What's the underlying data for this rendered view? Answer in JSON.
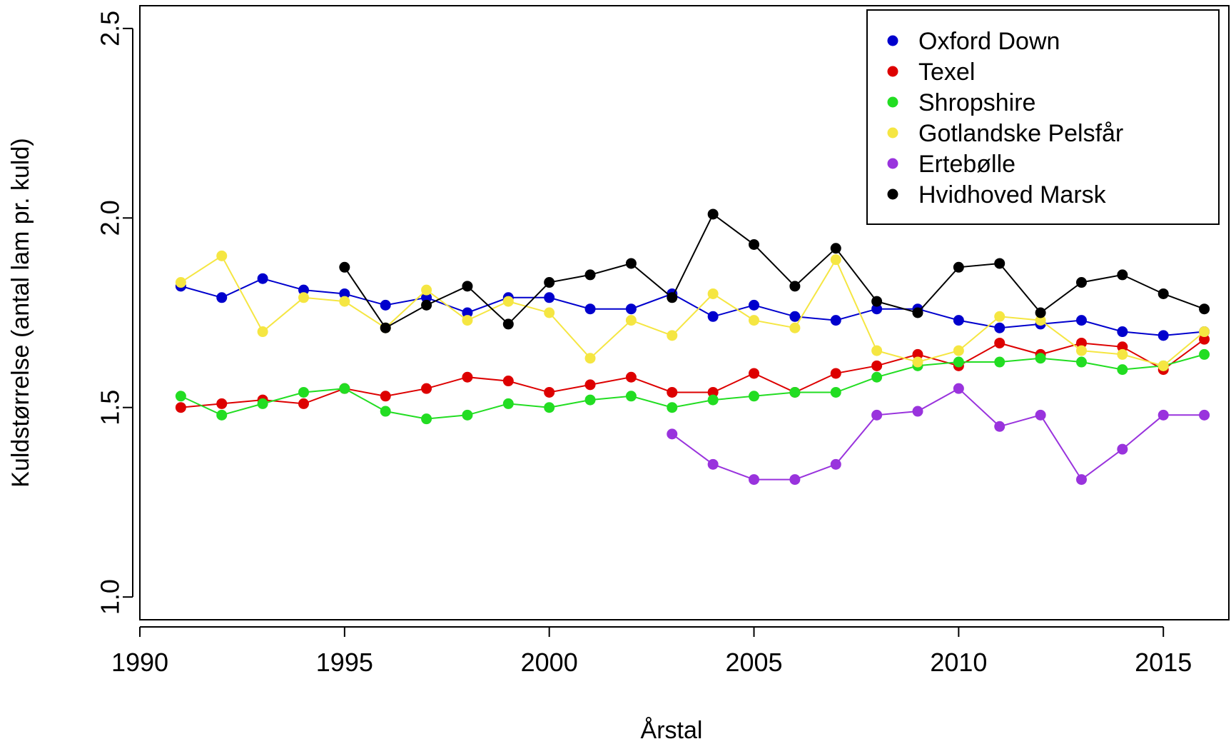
{
  "chart_data": {
    "type": "line",
    "title": "",
    "xlabel": "Årstal",
    "ylabel": "Kuldstørrelse (antal lam pr. kuld)",
    "xlim": [
      1990,
      2016.6
    ],
    "ylim": [
      0.94,
      2.56
    ],
    "xticks": [
      1990,
      1995,
      2000,
      2005,
      2010,
      2015
    ],
    "yticks": [
      1.0,
      1.5,
      2.0,
      2.5
    ],
    "xtick_labels": [
      "1990",
      "1995",
      "2000",
      "2005",
      "2010",
      "2015"
    ],
    "ytick_labels": [
      "1.0",
      "1.5",
      "2.0",
      "2.5"
    ],
    "grid": false,
    "legend_position": "top-right",
    "series": [
      {
        "name": "Oxford Down",
        "color": "#0000cd",
        "x": [
          1991,
          1992,
          1993,
          1994,
          1995,
          1996,
          1997,
          1998,
          1999,
          2000,
          2001,
          2002,
          2003,
          2004,
          2005,
          2006,
          2007,
          2008,
          2009,
          2010,
          2011,
          2012,
          2013,
          2014,
          2015,
          2016
        ],
        "y": [
          1.82,
          1.79,
          1.84,
          1.81,
          1.8,
          1.77,
          1.79,
          1.75,
          1.79,
          1.79,
          1.76,
          1.76,
          1.8,
          1.74,
          1.77,
          1.74,
          1.73,
          1.76,
          1.76,
          1.73,
          1.71,
          1.72,
          1.73,
          1.7,
          1.69,
          1.7
        ]
      },
      {
        "name": "Texel",
        "color": "#dd0000",
        "x": [
          1991,
          1992,
          1993,
          1994,
          1995,
          1996,
          1997,
          1998,
          1999,
          2000,
          2001,
          2002,
          2003,
          2004,
          2005,
          2006,
          2007,
          2008,
          2009,
          2010,
          2011,
          2012,
          2013,
          2014,
          2015,
          2016
        ],
        "y": [
          1.5,
          1.51,
          1.52,
          1.51,
          1.55,
          1.53,
          1.55,
          1.58,
          1.57,
          1.54,
          1.56,
          1.58,
          1.54,
          1.54,
          1.59,
          1.54,
          1.59,
          1.61,
          1.64,
          1.61,
          1.67,
          1.64,
          1.67,
          1.66,
          1.6,
          1.68
        ]
      },
      {
        "name": "Shropshire",
        "color": "#22dd22",
        "x": [
          1991,
          1992,
          1993,
          1994,
          1995,
          1996,
          1997,
          1998,
          1999,
          2000,
          2001,
          2002,
          2003,
          2004,
          2005,
          2006,
          2007,
          2008,
          2009,
          2010,
          2011,
          2012,
          2013,
          2014,
          2015,
          2016
        ],
        "y": [
          1.53,
          1.48,
          1.51,
          1.54,
          1.55,
          1.49,
          1.47,
          1.48,
          1.51,
          1.5,
          1.52,
          1.53,
          1.5,
          1.52,
          1.53,
          1.54,
          1.54,
          1.58,
          1.61,
          1.62,
          1.62,
          1.63,
          1.62,
          1.6,
          1.61,
          1.64
        ]
      },
      {
        "name": "Gotlandske Pelsfår",
        "color": "#f5e642",
        "x": [
          1991,
          1992,
          1993,
          1994,
          1995,
          1996,
          1997,
          1998,
          1999,
          2000,
          2001,
          2002,
          2003,
          2004,
          2005,
          2006,
          2007,
          2008,
          2009,
          2010,
          2011,
          2012,
          2013,
          2014,
          2015,
          2016
        ],
        "y": [
          1.83,
          1.9,
          1.7,
          1.79,
          1.78,
          1.71,
          1.81,
          1.73,
          1.78,
          1.75,
          1.63,
          1.73,
          1.69,
          1.8,
          1.73,
          1.71,
          1.89,
          1.65,
          1.62,
          1.65,
          1.74,
          1.73,
          1.65,
          1.64,
          1.61,
          1.7
        ]
      },
      {
        "name": "Ertebølle",
        "color": "#9933dd",
        "x": [
          2003,
          2004,
          2005,
          2006,
          2007,
          2008,
          2009,
          2010,
          2011,
          2012,
          2013,
          2014,
          2015,
          2016
        ],
        "y": [
          1.43,
          1.35,
          1.31,
          1.31,
          1.35,
          1.48,
          1.49,
          1.55,
          1.45,
          1.48,
          1.31,
          1.39,
          1.48,
          1.48
        ]
      },
      {
        "name": "Hvidhoved Marsk",
        "color": "#000000",
        "x": [
          1995,
          1996,
          1997,
          1998,
          1999,
          2000,
          2001,
          2002,
          2003,
          2004,
          2005,
          2006,
          2007,
          2008,
          2009,
          2010,
          2011,
          2012,
          2013,
          2014,
          2015,
          2016
        ],
        "y": [
          1.87,
          1.71,
          1.77,
          1.82,
          1.72,
          1.83,
          1.85,
          1.88,
          1.79,
          2.01,
          1.93,
          1.82,
          1.92,
          1.78,
          1.75,
          1.87,
          1.88,
          1.75,
          1.83,
          1.85,
          1.8,
          1.76
        ]
      }
    ]
  }
}
